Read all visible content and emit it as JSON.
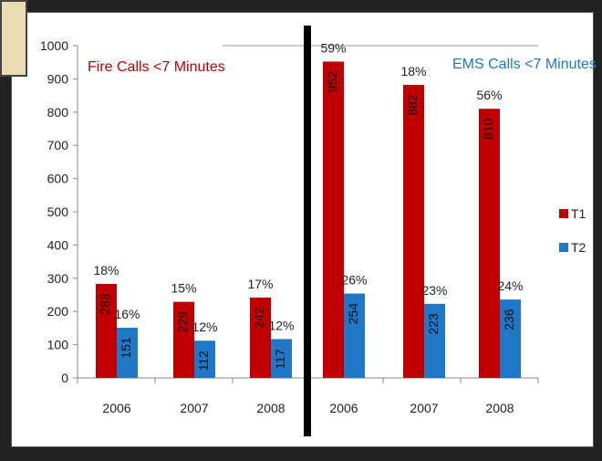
{
  "chart_data": {
    "type": "bar",
    "categories": [
      "2006",
      "2007",
      "2008",
      "2006",
      "2007",
      "2008"
    ],
    "groups": [
      {
        "annotation": "Fire Calls <7 Minutes",
        "category_indices": [
          0,
          1,
          2
        ]
      },
      {
        "annotation": "EMS Calls <7 Minutes",
        "category_indices": [
          3,
          4,
          5
        ]
      }
    ],
    "series": [
      {
        "name": "T1",
        "color": "#c00000",
        "values": [
          283,
          229,
          242,
          952,
          882,
          810
        ],
        "value_labels": [
          "283",
          "229",
          "242",
          "952",
          "882",
          "810"
        ],
        "pct_labels": [
          "18%",
          "15%",
          "17%",
          "59%",
          "18%",
          "56%"
        ]
      },
      {
        "name": "T2",
        "color": "#1f77c8",
        "values": [
          151,
          112,
          117,
          254,
          223,
          236
        ],
        "value_labels": [
          "151",
          "112",
          "117",
          "254",
          "223",
          "236"
        ],
        "pct_labels": [
          "16%",
          "12%",
          "12%",
          "26%",
          "23%",
          "24%"
        ]
      }
    ],
    "y_ticks": [
      "0",
      "100",
      "200",
      "300",
      "400",
      "500",
      "600",
      "700",
      "800",
      "900",
      "1000"
    ],
    "ylim": [
      0,
      1000
    ],
    "legend_position": "right",
    "grid": false,
    "divider_color": "#000000"
  }
}
